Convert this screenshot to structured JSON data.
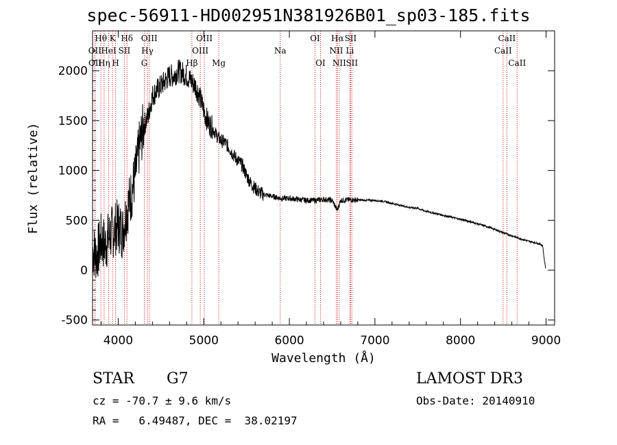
{
  "chart_data": {
    "type": "line",
    "title": "spec-56911-HD002951N381926B01_sp03-185.fits",
    "xlabel": "Wavelength (Å)",
    "ylabel": "Flux (relative)",
    "xlim": [
      3700,
      9100
    ],
    "ylim": [
      -550,
      2400
    ],
    "xticks": [
      4000,
      5000,
      6000,
      7000,
      8000,
      9000
    ],
    "yticks": [
      -500,
      0,
      500,
      1000,
      1500,
      2000
    ],
    "series": [
      {
        "name": "flux",
        "x": [
          3700,
          3750,
          3800,
          3850,
          3900,
          3950,
          4000,
          4050,
          4100,
          4150,
          4200,
          4250,
          4300,
          4350,
          4400,
          4450,
          4500,
          4550,
          4600,
          4650,
          4700,
          4750,
          4800,
          4850,
          4900,
          4950,
          5000,
          5050,
          5100,
          5150,
          5200,
          5250,
          5300,
          5350,
          5400,
          5450,
          5500,
          5550,
          5600,
          5650,
          5700,
          5800,
          5900,
          6000,
          6100,
          6200,
          6300,
          6400,
          6500,
          6560,
          6600,
          6700,
          6800,
          6900,
          7000,
          7100,
          7200,
          7300,
          7400,
          7500,
          7600,
          7700,
          7800,
          7900,
          8000,
          8100,
          8200,
          8300,
          8400,
          8500,
          8600,
          8700,
          8800,
          8900,
          8960,
          8980,
          9000
        ],
        "y": [
          200,
          150,
          300,
          250,
          350,
          400,
          450,
          380,
          600,
          750,
          950,
          1250,
          1450,
          1550,
          1750,
          1800,
          1850,
          1900,
          1950,
          1950,
          2000,
          1980,
          1950,
          1900,
          1850,
          1750,
          1600,
          1480,
          1430,
          1350,
          1300,
          1280,
          1220,
          1150,
          1100,
          1050,
          950,
          870,
          820,
          780,
          760,
          740,
          720,
          720,
          710,
          700,
          700,
          710,
          700,
          600,
          700,
          705,
          705,
          700,
          700,
          690,
          670,
          650,
          630,
          620,
          590,
          570,
          550,
          530,
          510,
          490,
          465,
          440,
          410,
          375,
          345,
          315,
          290,
          270,
          250,
          100,
          0
        ]
      }
    ],
    "line_markers": [
      {
        "label": "Hθ",
        "x": 3797,
        "row": 1
      },
      {
        "label": "OII",
        "x": 3727,
        "row": 2
      },
      {
        "label": "OII",
        "x": 3729,
        "row": 3
      },
      {
        "label": "K",
        "x": 3934,
        "row": 1
      },
      {
        "label": "HeI",
        "x": 3889,
        "row": 2
      },
      {
        "label": "Hη",
        "x": 3835,
        "row": 3
      },
      {
        "label": "Hδ",
        "x": 4102,
        "row": 1
      },
      {
        "label": "SII",
        "x": 4072,
        "row": 2
      },
      {
        "label": "H",
        "x": 3969,
        "row": 3
      },
      {
        "label": "OIII",
        "x": 4363,
        "row": 1
      },
      {
        "label": "Hγ",
        "x": 4341,
        "row": 2
      },
      {
        "label": "G",
        "x": 4305,
        "row": 3
      },
      {
        "label": "OIII",
        "x": 5007,
        "row": 1
      },
      {
        "label": "OIII",
        "x": 4959,
        "row": 2
      },
      {
        "label": "Hβ",
        "x": 4861,
        "row": 3
      },
      {
        "label": "Mg",
        "x": 5175,
        "row": 3
      },
      {
        "label": "Na",
        "x": 5893,
        "row": 2
      },
      {
        "label": "OI",
        "x": 6300,
        "row": 1
      },
      {
        "label": "OI",
        "x": 6364,
        "row": 3
      },
      {
        "label": "Hα",
        "x": 6563,
        "row": 1
      },
      {
        "label": "SII",
        "x": 6716,
        "row": 1
      },
      {
        "label": "NII",
        "x": 6548,
        "row": 2
      },
      {
        "label": "Li",
        "x": 6708,
        "row": 2
      },
      {
        "label": "NII",
        "x": 6583,
        "row": 3
      },
      {
        "label": "SII",
        "x": 6731,
        "row": 3
      },
      {
        "label": "CaII",
        "x": 8542,
        "row": 1
      },
      {
        "label": "CaII",
        "x": 8498,
        "row": 2
      },
      {
        "label": "CaII",
        "x": 8662,
        "row": 3
      }
    ]
  },
  "info": {
    "object_type": "STAR",
    "subclass": "G7",
    "survey": "LAMOST DR3",
    "velocity": "cz = -70.7 ± 9.6 km/s",
    "obs_date": "Obs-Date: 20140910",
    "coords": "RA =   6.49487, DEC =  38.02197"
  },
  "colors": {
    "line": "#000000",
    "marker": "#cc0000"
  }
}
